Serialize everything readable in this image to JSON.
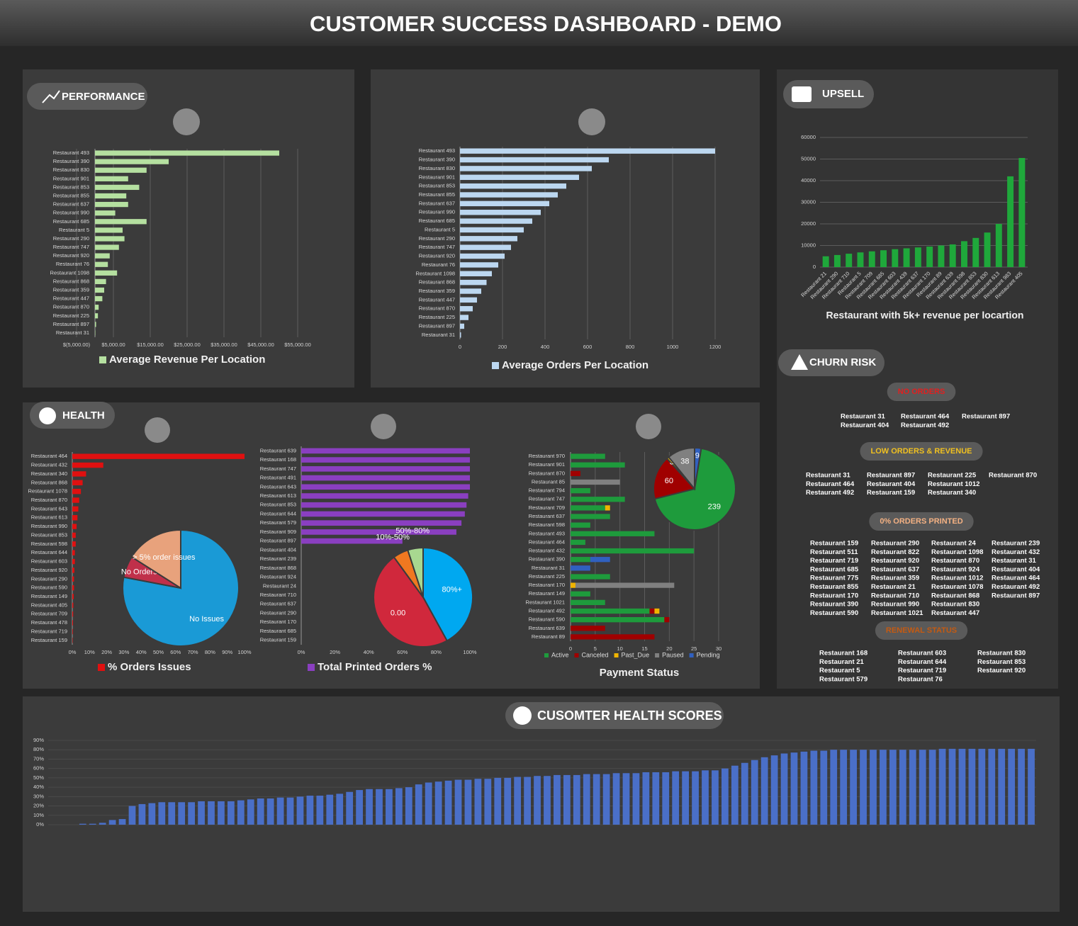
{
  "header": {
    "title": "CUSTOMER SUCCESS DASHBOARD - DEMO"
  },
  "sections": {
    "performance": "PERFORMANCE",
    "upsell": "UPSELL",
    "health": "HEALTH",
    "health_scores": "CUSOMTER HEALTH SCORES"
  },
  "churn_risk": {
    "title": "CHURN RISK",
    "groups": [
      {
        "label": "NO ORDERS",
        "color": "#e02020",
        "columns": [
          [
            "Restaurant 31",
            "Restaurant 404"
          ],
          [
            "Restaurant 464",
            "Restaurant 492"
          ],
          [
            "Restaurant 897"
          ]
        ]
      },
      {
        "label": "LOW ORDERS & REVENUE",
        "color": "#f0c020",
        "columns": [
          [
            "Restaurant 31",
            "Restaurant 464",
            "Restaurant 492"
          ],
          [
            "Restaurant 897",
            "Restaurant 404",
            "Restaurant 159"
          ],
          [
            "Restaurant 225",
            "Restaurant 1012",
            "Restaurant 340"
          ],
          [
            "Restaurant 870"
          ]
        ]
      },
      {
        "label": "0% ORDERS PRINTED",
        "color": "#f4b183",
        "columns": [
          [
            "Restaurant 159",
            "Restaurant 511",
            "Restaurant 719",
            "Restaurant 685",
            "Restaurant 775",
            "Restaurant 855",
            "Restaurant 170",
            "Restaurant 390",
            "Restaurant 590"
          ],
          [
            "Restaurant 290",
            "Restaurant 822",
            "Restaurant 920",
            "Restaurant 637",
            "Restaurant 359",
            "Restaurant 21",
            "Restaurant 710",
            "Restaurant 990",
            "Restaurant 1021"
          ],
          [
            "Restaurant 24",
            "Restaurant 1098",
            "Restaurant 870",
            "Restaurant 924",
            "Restaurant 1012",
            "Restaurant 1078",
            "Restaurant 868",
            "Restaurant 830",
            "Restaurant 447"
          ],
          [
            "Restaurant 239",
            "Restaurant 432",
            "Restaurant 31",
            "Restaurant 404",
            "Restaurant 464",
            "Restaurant 492",
            "Restaurant 897"
          ]
        ]
      },
      {
        "label": "RENEWAL STATUS",
        "color": "#c55a11",
        "columns": [
          [
            "Restaurant 168",
            "Restaurant 21",
            "Restaurant 5",
            "Restaurant 579"
          ],
          [
            "Restaurant 603",
            "Restaurant 644",
            "Restaurant 719",
            "Restaurant 76"
          ],
          [
            "Restaurant 830",
            "Restaurant 853",
            "Restaurant 920"
          ]
        ]
      }
    ]
  },
  "chart_data": [
    {
      "type": "hbar",
      "grid": true,
      "categories": [
        "Restaurant 493",
        "Restaurant 390",
        "Restaurant 830",
        "Restaurant 901",
        "Restaurant 853",
        "Restaurant 855",
        "Restaurant 637",
        "Restaurant 990",
        "Restaurant 685",
        "Restaurant 5",
        "Restaurant 290",
        "Restaurant 747",
        "Restaurant 920",
        "Restaurant 76",
        "Restaurant 1098",
        "Restaurant 868",
        "Restaurant 359",
        "Restaurant 447",
        "Restaurant 870",
        "Restaurant 225",
        "Restaurant 897",
        "Restaurant 31"
      ],
      "series": [
        {
          "name": "Average Revenue Per Location",
          "color": "#b5e0a0",
          "values": [
            50000,
            20000,
            14000,
            9000,
            12000,
            8500,
            9000,
            5500,
            14000,
            7500,
            8000,
            6500,
            4000,
            3500,
            6000,
            3000,
            2500,
            2000,
            1000,
            800,
            300,
            100
          ]
        }
      ],
      "xlim": [
        -5000,
        55000
      ],
      "xticks": [
        {
          "value": -5000,
          "label": "$(5,000.00)"
        },
        {
          "value": 5000,
          "label": "$5,000.00"
        },
        {
          "value": 15000,
          "label": "$15,000.00"
        },
        {
          "value": 25000,
          "label": "$25,000.00"
        },
        {
          "value": 35000,
          "label": "$35,000.00"
        },
        {
          "value": 45000,
          "label": "$45,000.00"
        },
        {
          "value": 55000,
          "label": "$55,000.00"
        }
      ]
    },
    {
      "type": "hbar",
      "grid": true,
      "categories": [
        "Restaurant 493",
        "Restaurant 390",
        "Restaurant 830",
        "Restaurant 901",
        "Restaurant 853",
        "Restaurant 855",
        "Restaurant 637",
        "Restaurant 990",
        "Restaurant 685",
        "Restaurant 5",
        "Restaurant 290",
        "Restaurant 747",
        "Restaurant 920",
        "Restaurant 76",
        "Restaurant 1098",
        "Restaurant 868",
        "Restaurant 359",
        "Restaurant 447",
        "Restaurant 870",
        "Restaurant 225",
        "Restaurant 897",
        "Restaurant 31"
      ],
      "series": [
        {
          "name": "Average Orders Per Location",
          "color": "#bcd7f0",
          "values": [
            1200,
            700,
            620,
            560,
            500,
            460,
            420,
            380,
            340,
            300,
            270,
            240,
            210,
            180,
            150,
            125,
            100,
            80,
            60,
            40,
            20,
            5
          ]
        }
      ],
      "xlim": [
        0,
        1200
      ],
      "xticks": [
        0,
        200,
        400,
        600,
        800,
        1000,
        1200
      ]
    },
    {
      "type": "bar",
      "grid": true,
      "title": "Restaurant with 5k+ revenue per locartion",
      "color": "#1fa83b",
      "categories": [
        "Restaurant 21",
        "Restaurant 290",
        "Restaurant 710",
        "Restaurant 5",
        "Restaurant 709",
        "Restaurant 685",
        "Restaurant 603",
        "Restaurant 439",
        "Restaurant 637",
        "Restaurant 170",
        "Restaurant 89",
        "Restaurant 639",
        "Restaurant 598",
        "Restaurant 853",
        "Restaurant 830",
        "Restaurant 613",
        "Restaurant 983",
        "Restaurant 405"
      ],
      "values": [
        5000,
        5600,
        6200,
        6800,
        7300,
        7800,
        8300,
        8700,
        9100,
        9500,
        10000,
        10500,
        12000,
        13500,
        16000,
        20000,
        42000,
        50500
      ],
      "ylim": [
        0,
        60000
      ],
      "yticks": [
        0,
        10000,
        20000,
        30000,
        40000,
        50000,
        60000
      ]
    },
    {
      "type": "hbar",
      "grid": false,
      "categories": [
        "Restaurant 464",
        "Restaurant 432",
        "Restaurant 340",
        "Restaurant 868",
        "Restaurant 1078",
        "Restaurant 870",
        "Restaurant 643",
        "Restaurant 613",
        "Restaurant 990",
        "Restaurant 853",
        "Restaurant 598",
        "Restaurant 644",
        "Restaurant 603",
        "Restaurant 920",
        "Restaurant 290",
        "Restaurant 590",
        "Restaurant 149",
        "Restaurant 405",
        "Restaurant 709",
        "Restaurant 478",
        "Restaurant 719",
        "Restaurant 159"
      ],
      "series": [
        {
          "name": "% Orders Issues",
          "color": "#e01010",
          "values": [
            100,
            18,
            8,
            6,
            5,
            4,
            3.5,
            3,
            2.5,
            2,
            2,
            1.5,
            1.5,
            1.2,
            1,
            1,
            0.8,
            0.6,
            0.5,
            0.4,
            0.3,
            0.2
          ]
        }
      ],
      "xlim": [
        0,
        100
      ],
      "xticks": [
        {
          "value": 0,
          "label": "0%"
        },
        {
          "value": 10,
          "label": "10%"
        },
        {
          "value": 20,
          "label": "20%"
        },
        {
          "value": 30,
          "label": "30%"
        },
        {
          "value": 40,
          "label": "40%"
        },
        {
          "value": 50,
          "label": "50%"
        },
        {
          "value": 60,
          "label": "60%"
        },
        {
          "value": 70,
          "label": "70%"
        },
        {
          "value": 80,
          "label": "80%"
        },
        {
          "value": 90,
          "label": "90%"
        },
        {
          "value": 100,
          "label": "100%"
        }
      ]
    },
    {
      "type": "pie",
      "categories": [
        "No Issues",
        "No Orders!",
        "> 5% order issues"
      ],
      "values": [
        78,
        6,
        16
      ],
      "colors": [
        "#1a9ad6",
        "#c0304a",
        "#e8a27c"
      ]
    },
    {
      "type": "hbar",
      "grid": false,
      "categories": [
        "Restaurant 639",
        "Restaurant 168",
        "Restaurant 747",
        "Restaurant 491",
        "Restaurant 643",
        "Restaurant 613",
        "Restaurant 853",
        "Restaurant 644",
        "Restaurant 579",
        "Restaurant 909",
        "Restaurant 897",
        "Restaurant 404",
        "Restaurant 239",
        "Restaurant 868",
        "Restaurant 924",
        "Restaurant 24",
        "Restaurant 710",
        "Restaurant 637",
        "Restaurant 290",
        "Restaurant 170",
        "Restaurant 685",
        "Restaurant 159"
      ],
      "series": [
        {
          "name": "Total Printed Orders %",
          "color": "#8a3fc0",
          "values": [
            100,
            100,
            100,
            100,
            100,
            99,
            98,
            97,
            95,
            92,
            60,
            0,
            0,
            0,
            0,
            0,
            0,
            0,
            0,
            0,
            0,
            0
          ]
        }
      ],
      "xlim": [
        0,
        100
      ],
      "xticks": [
        {
          "value": 0,
          "label": "0%"
        },
        {
          "value": 20,
          "label": "20%"
        },
        {
          "value": 40,
          "label": "40%"
        },
        {
          "value": 60,
          "label": "60%"
        },
        {
          "value": 80,
          "label": "80%"
        },
        {
          "value": 100,
          "label": "100%"
        }
      ]
    },
    {
      "type": "pie",
      "categories": [
        "80%+",
        "0.00",
        "10%-50%",
        "50%-80%"
      ],
      "values": [
        42,
        48,
        5,
        5
      ],
      "colors": [
        "#00a8f0",
        "#d0283c",
        "#f07820",
        "#a8d890"
      ]
    },
    {
      "type": "stacked_hbar",
      "grid": true,
      "title": "Payment Status",
      "categories": [
        "Restaurant 970",
        "Restaurant 901",
        "Restaurant 870",
        "Restaurant 85",
        "Restaurant 794",
        "Restaurant 747",
        "Restaurant 709",
        "Restaurant 637",
        "Restaurant 598",
        "Restaurant 493",
        "Restaurant 464",
        "Restaurant 432",
        "Restaurant 390",
        "Restaurant 31",
        "Restaurant 225",
        "Restaurant 170",
        "Restaurant 149",
        "Restaurant 1021",
        "Restaurant 492",
        "Restaurant 590",
        "Restaurant 639",
        "Restaurant 89"
      ],
      "series": [
        {
          "name": "Active",
          "color": "#1e9b3c",
          "values": [
            7,
            11,
            0,
            0,
            4,
            11,
            7,
            8,
            4,
            17,
            3,
            25,
            4,
            0,
            8,
            0,
            4,
            7,
            16,
            19,
            0,
            0
          ]
        },
        {
          "name": "Canceled",
          "color": "#a00000",
          "values": [
            0,
            0,
            2,
            0,
            0,
            0,
            0,
            0,
            0,
            0,
            0,
            0,
            0,
            0,
            0,
            0,
            0,
            0,
            1,
            1,
            7,
            17
          ]
        },
        {
          "name": "Past_Due",
          "color": "#f0b400",
          "values": [
            0,
            0,
            0,
            0,
            0,
            0,
            1,
            0,
            0,
            0,
            0,
            0,
            0,
            0,
            0,
            1,
            0,
            0,
            1,
            0,
            0,
            0
          ]
        },
        {
          "name": "Paused",
          "color": "#808080",
          "values": [
            0,
            0,
            0,
            10,
            0,
            0,
            0,
            0,
            0,
            0,
            0,
            0,
            0,
            0,
            0,
            20,
            0,
            0,
            0,
            0,
            0,
            0
          ]
        },
        {
          "name": "Pending",
          "color": "#3060c0",
          "values": [
            0,
            0,
            0,
            0,
            0,
            0,
            0,
            0,
            0,
            0,
            0,
            0,
            4,
            4,
            0,
            0,
            0,
            0,
            0,
            0,
            0,
            0
          ]
        }
      ],
      "xlim": [
        0,
        30
      ],
      "xticks": [
        0,
        5,
        10,
        15,
        20,
        25,
        30
      ]
    },
    {
      "type": "pie",
      "values": [
        239,
        60,
        3,
        38,
        9
      ],
      "colors": [
        "#1e9b3c",
        "#a00000",
        "#f0b400",
        "#808080",
        "#3060c0"
      ]
    },
    {
      "type": "bar",
      "grid": false,
      "color": "#4a6fc8",
      "values": [
        0,
        0,
        0,
        1,
        1,
        2,
        5,
        6,
        20,
        22,
        23,
        24,
        24,
        24,
        24,
        25,
        25,
        25,
        25,
        26,
        27,
        28,
        28,
        29,
        29,
        30,
        31,
        31,
        32,
        33,
        35,
        37,
        38,
        38,
        38,
        39,
        40,
        43,
        45,
        46,
        47,
        48,
        48,
        49,
        49,
        50,
        50,
        51,
        51,
        52,
        52,
        53,
        53,
        53,
        54,
        54,
        54,
        55,
        55,
        55,
        56,
        56,
        56,
        57,
        57,
        57,
        58,
        58,
        60,
        63,
        66,
        69,
        72,
        74,
        76,
        77,
        78,
        79,
        79,
        80,
        80,
        80,
        80,
        80,
        80,
        80,
        80,
        80,
        80,
        80,
        81,
        81,
        81,
        81,
        81,
        81,
        81,
        81,
        81,
        81
      ],
      "ylim": [
        0,
        90
      ],
      "yticks": [
        {
          "value": 0,
          "label": "0%"
        },
        {
          "value": 10,
          "label": "10%"
        },
        {
          "value": 20,
          "label": "20%"
        },
        {
          "value": 30,
          "label": "30%"
        },
        {
          "value": 40,
          "label": "40%"
        },
        {
          "value": 50,
          "label": "50%"
        },
        {
          "value": 60,
          "label": "60%"
        },
        {
          "value": 70,
          "label": "70%"
        },
        {
          "value": 80,
          "label": "80%"
        },
        {
          "value": 90,
          "label": "90%"
        }
      ]
    }
  ]
}
